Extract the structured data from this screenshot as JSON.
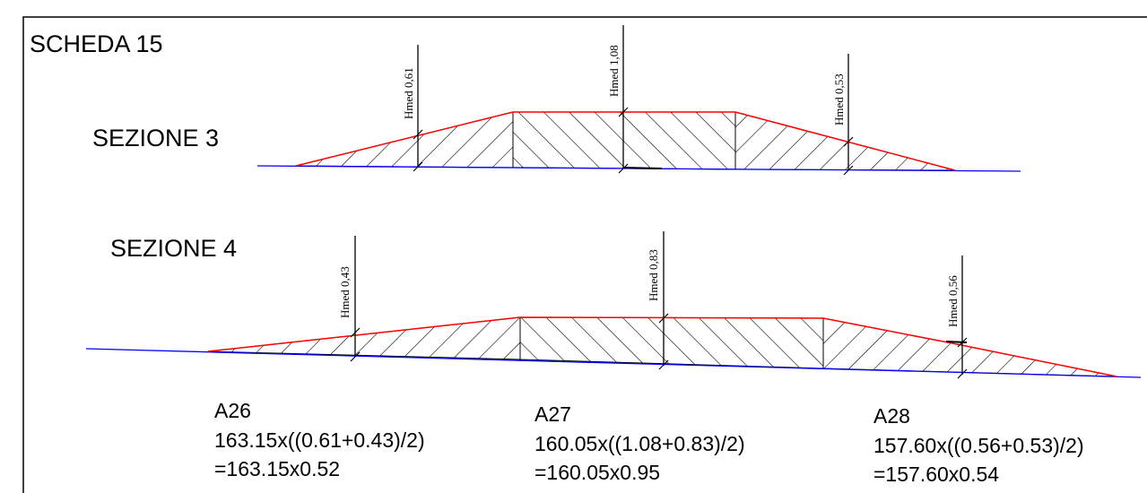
{
  "sheet": {
    "title": "SCHEDA 15"
  },
  "sections": [
    {
      "label": "SEZIONE 3",
      "measures": [
        {
          "label": "Hmed 0,61"
        },
        {
          "label": "Hmed 1,08"
        },
        {
          "label": "Hmed 0,53"
        }
      ]
    },
    {
      "label": "SEZIONE 4",
      "measures": [
        {
          "label": "Hmed 0,43"
        },
        {
          "label": "Hmed 0,83"
        },
        {
          "label": "Hmed 0,56"
        }
      ]
    }
  ],
  "areas": [
    {
      "name": "A26",
      "formula": "163.15x((0.61+0.43)/2)",
      "result": "=163.15x0.52"
    },
    {
      "name": "A27",
      "formula": "160.05x((1.08+0.83)/2)",
      "result": "=160.05x0.95"
    },
    {
      "name": "A28",
      "formula": "157.60x((0.56+0.53)/2)",
      "result": "=157.60x0.54"
    }
  ],
  "colors": {
    "ground_line": "#0000ff",
    "profile_line": "#ff0000",
    "hatch": "#000000"
  }
}
